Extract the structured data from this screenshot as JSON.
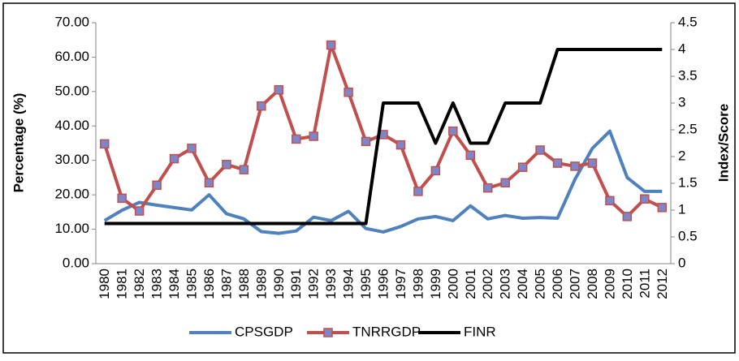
{
  "chart_data": {
    "type": "line",
    "ylabel": "Percentage (%)",
    "y2label": "Index/Score",
    "categories": [
      "1980",
      "1981",
      "1982",
      "1983",
      "1984",
      "1985",
      "1986",
      "1987",
      "1988",
      "1989",
      "1990",
      "1991",
      "1992",
      "1993",
      "1994",
      "1995",
      "1996",
      "1997",
      "1998",
      "1999",
      "2000",
      "2001",
      "2002",
      "2003",
      "2004",
      "2005",
      "2006",
      "2007",
      "2008",
      "2009",
      "2010",
      "2011",
      "2012"
    ],
    "series": [
      {
        "name": "CPSGDP",
        "color": "#4f81bd",
        "values": [
          12.5,
          15.5,
          17.8,
          17,
          16.3,
          15.6,
          20,
          14.5,
          13,
          9.3,
          8.8,
          9.5,
          13.5,
          12.5,
          15.2,
          10.2,
          9.2,
          10.8,
          13,
          13.7,
          12.5,
          16.8,
          13,
          14,
          13.2,
          13.4,
          13.2,
          24.5,
          33.5,
          38.5,
          25,
          21,
          21
        ]
      },
      {
        "name": "TNRRGDP",
        "color": "#c0504d",
        "marker": "square",
        "marker_color": "#7f86c7",
        "values": [
          34.8,
          19,
          15.3,
          22.8,
          30.5,
          33.5,
          23.5,
          28.8,
          27.3,
          45.8,
          50.5,
          36.2,
          37,
          63.5,
          49.8,
          35.5,
          37.5,
          34.5,
          21,
          27,
          38.5,
          31.5,
          22,
          23.5,
          28,
          33,
          29.2,
          28.3,
          29.2,
          18.3,
          13.7,
          18.8,
          16.3
        ]
      },
      {
        "name": "FINR",
        "color": "#000000",
        "axis": "y2",
        "values": [
          0.75,
          0.75,
          0.75,
          0.75,
          0.75,
          0.75,
          0.75,
          0.75,
          0.75,
          0.75,
          0.75,
          0.75,
          0.75,
          0.75,
          0.75,
          0.75,
          3,
          3,
          3,
          2.25,
          3,
          2.25,
          2.25,
          3,
          3,
          3,
          4,
          4,
          4,
          4,
          4,
          4,
          4
        ]
      }
    ],
    "ylim": [
      0,
      70
    ],
    "yticks": [
      {
        "value": 0,
        "label": "0.00"
      },
      {
        "value": 10,
        "label": "10.00"
      },
      {
        "value": 20,
        "label": "20.00"
      },
      {
        "value": 30,
        "label": "30.00"
      },
      {
        "value": 40,
        "label": "40.00"
      },
      {
        "value": 50,
        "label": "50.00"
      },
      {
        "value": 60,
        "label": "60.00"
      },
      {
        "value": 70,
        "label": "70.00"
      }
    ],
    "y2lim": [
      0,
      4.5
    ],
    "y2ticks": [
      0,
      0.5,
      1,
      1.5,
      2,
      2.5,
      3,
      3.5,
      4,
      4.5
    ],
    "legend": "bottom"
  }
}
